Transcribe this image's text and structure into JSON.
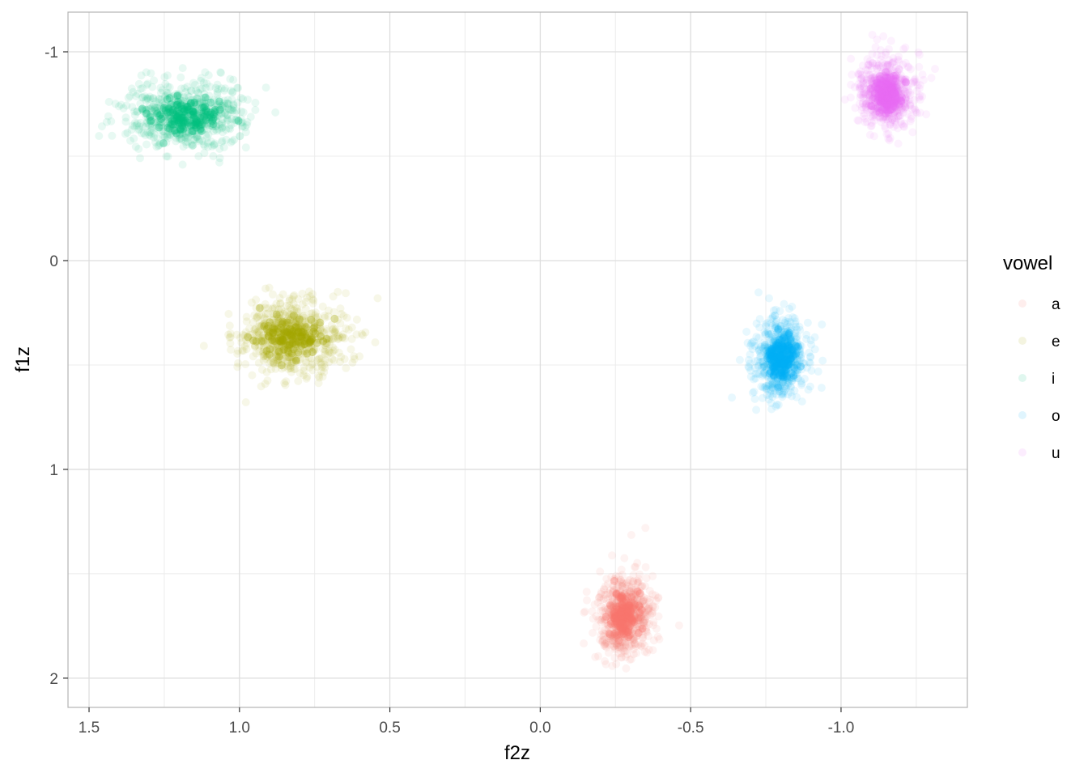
{
  "chart_data": {
    "type": "scatter",
    "title": "",
    "xlabel": "f2z",
    "ylabel": "f1z",
    "x_reversed": true,
    "y_reversed": true,
    "xlim": [
      1.57,
      -1.42
    ],
    "ylim": [
      -1.19,
      2.14
    ],
    "x_ticks": [
      1.5,
      1.0,
      0.5,
      0.0,
      -0.5,
      -1.0
    ],
    "x_tick_labels": [
      "1.5",
      "1.0",
      "0.5",
      "0.0",
      "-0.5",
      "-1.0"
    ],
    "y_ticks": [
      -1,
      0,
      1,
      2
    ],
    "y_tick_labels": [
      "-1",
      "0",
      "1",
      "2"
    ],
    "grid": true,
    "legend": {
      "title": "vowel",
      "position": "right"
    },
    "series": [
      {
        "name": "a",
        "color": "#F8766D",
        "center": [
          -0.28,
          1.7
        ],
        "spread": [
          0.045,
          0.1
        ]
      },
      {
        "name": "e",
        "color": "#A3A500",
        "center": [
          0.83,
          0.37
        ],
        "spread": [
          0.09,
          0.09
        ]
      },
      {
        "name": "i",
        "color": "#00BF7D",
        "center": [
          1.18,
          -0.69
        ],
        "spread": [
          0.1,
          0.08
        ]
      },
      {
        "name": "o",
        "color": "#00B0F6",
        "center": [
          -0.8,
          0.46
        ],
        "spread": [
          0.045,
          0.09
        ]
      },
      {
        "name": "u",
        "color": "#E76BF3",
        "center": [
          -1.15,
          -0.8
        ],
        "spread": [
          0.045,
          0.08
        ]
      }
    ]
  }
}
